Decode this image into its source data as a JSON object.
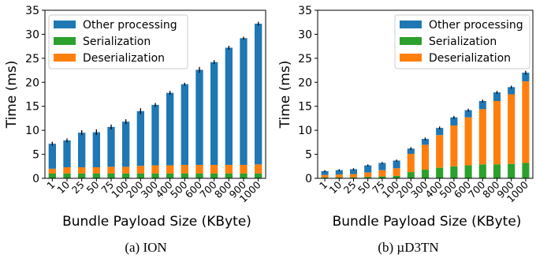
{
  "chart_data": [
    {
      "type": "bar",
      "stacked": true,
      "caption": "(a) ION",
      "categories": [
        "1",
        "10",
        "25",
        "50",
        "75",
        "100",
        "200",
        "300",
        "400",
        "500",
        "600",
        "700",
        "800",
        "900",
        "1000"
      ],
      "series": [
        {
          "name": "Serialization",
          "color": "#2ca02c",
          "values": [
            1.0,
            1.0,
            1.0,
            1.0,
            1.0,
            1.0,
            1.0,
            1.0,
            1.0,
            1.0,
            1.0,
            1.0,
            1.0,
            1.0,
            1.0
          ]
        },
        {
          "name": "Deserialization",
          "color": "#ff7f0e",
          "values": [
            1.0,
            1.3,
            1.3,
            1.3,
            1.4,
            1.4,
            1.6,
            1.7,
            1.7,
            1.8,
            1.8,
            1.8,
            1.8,
            1.8,
            1.9
          ]
        },
        {
          "name": "Other processing",
          "color": "#1f77b4",
          "values": [
            5.2,
            5.6,
            7.2,
            7.3,
            8.3,
            9.4,
            11.4,
            12.6,
            15.1,
            16.8,
            19.8,
            21.4,
            24.4,
            26.4,
            29.3
          ]
        }
      ],
      "errors": [
        0.4,
        0.4,
        0.5,
        0.6,
        0.5,
        0.5,
        0.6,
        0.4,
        0.4,
        0.3,
        0.6,
        0.4,
        0.4,
        0.3,
        0.4
      ],
      "xlabel": "Bundle Payload Size (KByte)",
      "ylabel": "Time (ms)",
      "ylim": [
        0,
        35
      ],
      "yticks": [
        0,
        5,
        10,
        15,
        20,
        25,
        30,
        35
      ],
      "legend": [
        "Other processing",
        "Serialization",
        "Deserialization"
      ],
      "legend_position": "top-left",
      "grid": false
    },
    {
      "type": "bar",
      "stacked": true,
      "caption": "(b) µD3TN",
      "categories": [
        "1",
        "10",
        "25",
        "50",
        "75",
        "100",
        "200",
        "300",
        "400",
        "500",
        "600",
        "700",
        "800",
        "900",
        "1000"
      ],
      "series": [
        {
          "name": "Serialization",
          "color": "#2ca02c",
          "values": [
            0.2,
            0.2,
            0.2,
            0.3,
            0.4,
            0.5,
            1.3,
            1.8,
            2.2,
            2.5,
            2.7,
            2.9,
            2.9,
            3.0,
            3.2
          ]
        },
        {
          "name": "Deserialization",
          "color": "#ff7f0e",
          "values": [
            0.5,
            0.6,
            0.7,
            0.9,
            1.3,
            1.6,
            3.8,
            5.2,
            6.8,
            8.5,
            10.0,
            11.5,
            13.2,
            14.5,
            17.0
          ]
        },
        {
          "name": "Other processing",
          "color": "#1f77b4",
          "values": [
            0.8,
            0.9,
            1.0,
            1.5,
            1.5,
            1.6,
            1.1,
            1.2,
            1.5,
            1.7,
            1.5,
            1.7,
            1.8,
            1.5,
            1.8
          ]
        }
      ],
      "errors": [
        0.2,
        0.2,
        0.2,
        0.2,
        0.2,
        0.2,
        0.3,
        0.3,
        0.3,
        0.3,
        0.3,
        0.3,
        0.3,
        0.3,
        0.4
      ],
      "xlabel": "Bundle Payload Size (KByte)",
      "ylabel": "Time (ms)",
      "ylim": [
        0,
        35
      ],
      "yticks": [
        0,
        5,
        10,
        15,
        20,
        25,
        30,
        35
      ],
      "legend": [
        "Other processing",
        "Serialization",
        "Deserialization"
      ],
      "legend_position": "top-right",
      "grid": false
    }
  ]
}
